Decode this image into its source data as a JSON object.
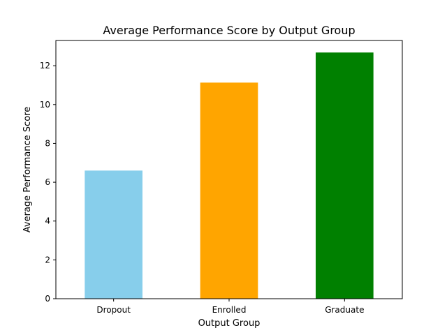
{
  "chart_data": {
    "type": "bar",
    "title": "Average Performance Score by Output Group",
    "xlabel": "Output Group",
    "ylabel": "Average Performance Score",
    "categories": [
      "Dropout",
      "Enrolled",
      "Graduate"
    ],
    "values": [
      6.6,
      11.13,
      12.68
    ],
    "colors": [
      "#87CEEB",
      "#FFA500",
      "#008000"
    ],
    "ylim": [
      0,
      13.3
    ],
    "yticks": [
      0,
      2,
      4,
      6,
      8,
      10,
      12
    ],
    "grid": false,
    "legend": "none"
  }
}
